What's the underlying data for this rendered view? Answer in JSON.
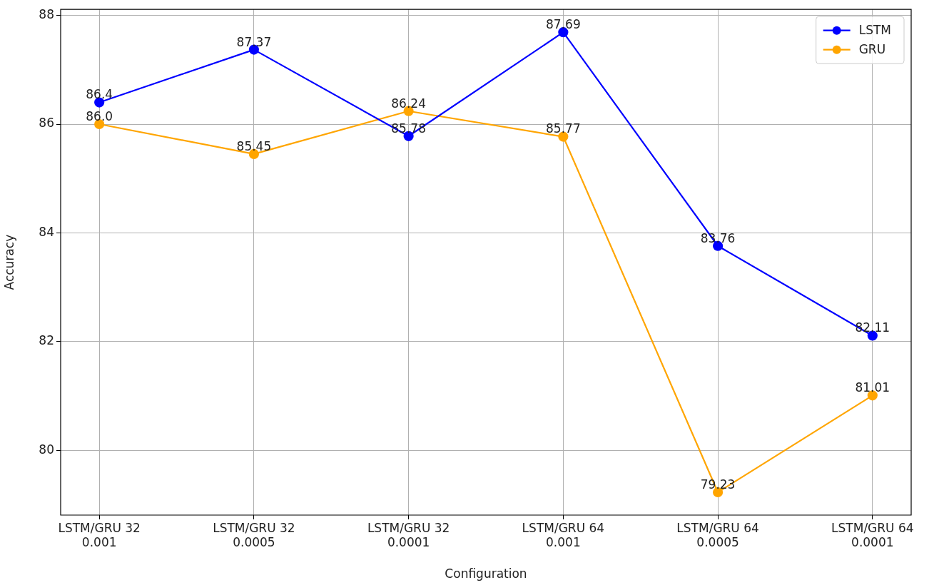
{
  "chart_data": {
    "type": "line",
    "xlabel": "Configuration",
    "ylabel": "Accuracy",
    "categories": [
      "LSTM/GRU 32\n0.001",
      "LSTM/GRU 32\n0.0005",
      "LSTM/GRU 32\n0.0001",
      "LSTM/GRU 64\n0.001",
      "LSTM/GRU 64\n0.0005",
      "LSTM/GRU 64\n0.0001"
    ],
    "series": [
      {
        "name": "LSTM",
        "color": "#0000ff",
        "values": [
          86.4,
          87.37,
          85.78,
          87.69,
          83.76,
          82.11
        ],
        "value_labels": [
          "86.4",
          "87.37",
          "85.78",
          "87.69",
          "83.76",
          "82.11"
        ]
      },
      {
        "name": "GRU",
        "color": "#ffa500",
        "values": [
          86.0,
          85.45,
          86.24,
          85.77,
          79.23,
          81.01
        ],
        "value_labels": [
          "86.0",
          "85.45",
          "86.24",
          "85.77",
          "79.23",
          "81.01"
        ]
      }
    ],
    "ylim": [
      78.81,
      88.11
    ],
    "yticks": [
      80,
      82,
      84,
      86,
      88
    ],
    "grid": true,
    "legend": "top right",
    "marker": "circle",
    "line_style": "solid"
  }
}
